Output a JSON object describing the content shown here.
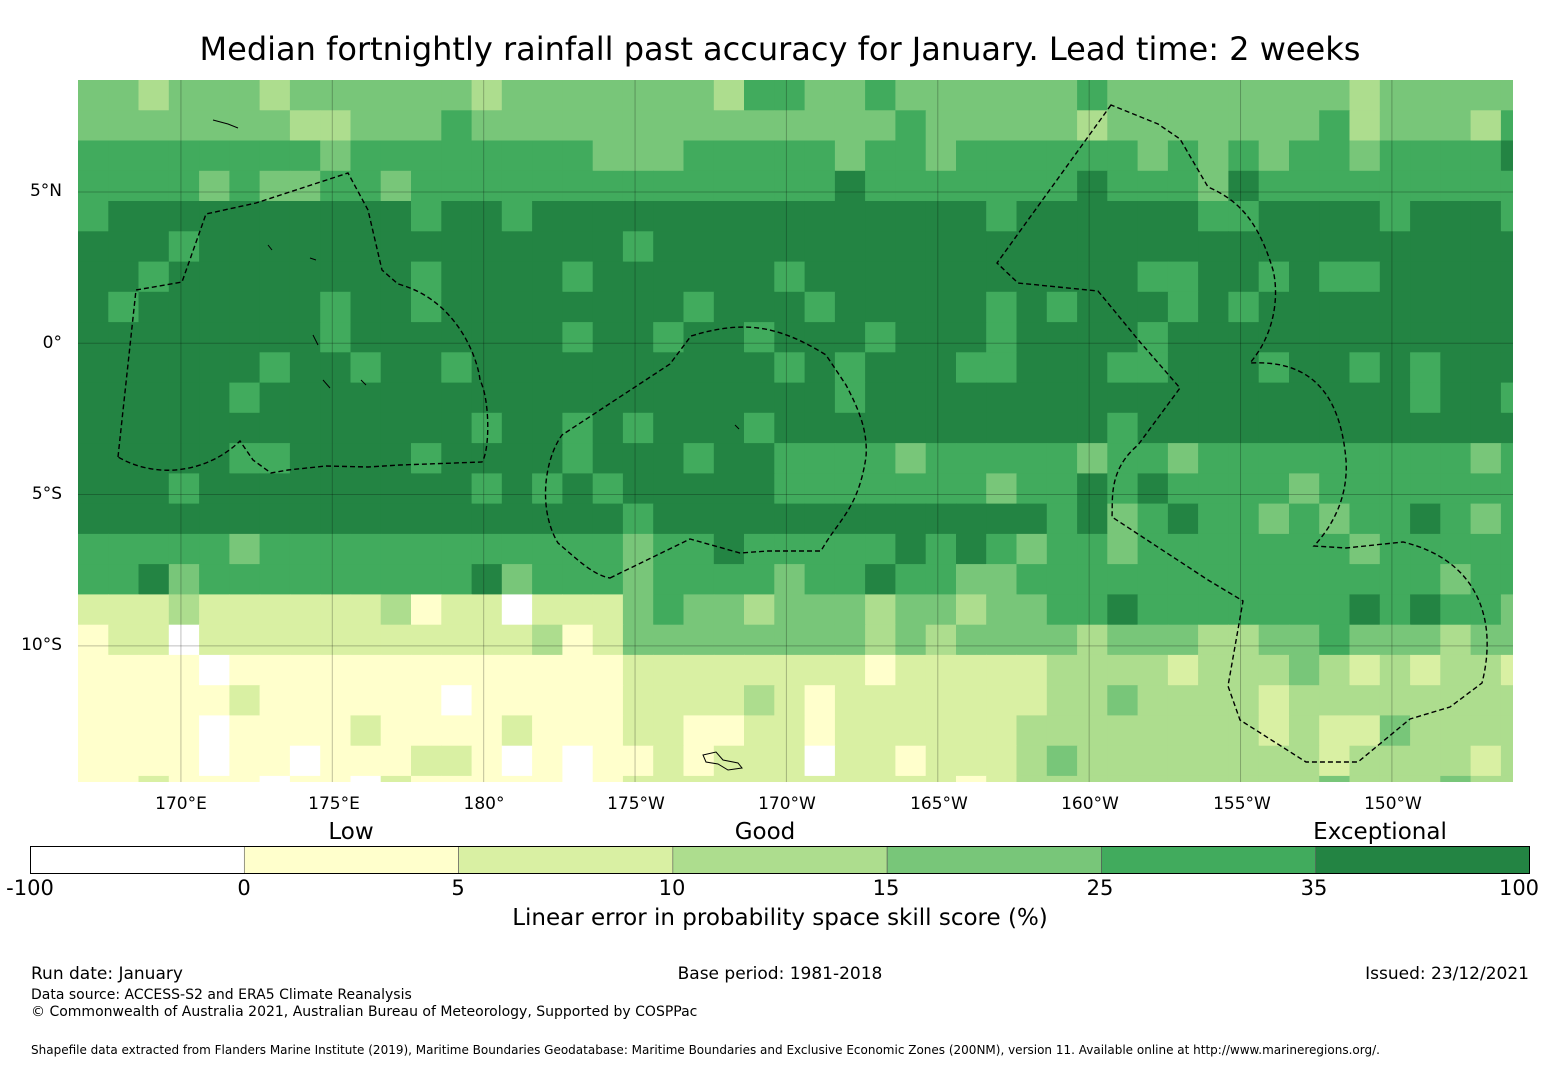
{
  "title": "Median fortnightly rainfall past accuracy for January. Lead time: 2 weeks",
  "map": {
    "y_axis_labels": [
      "5°N",
      "0°",
      "5°S",
      "10°S"
    ],
    "x_axis_labels": [
      "170°E",
      "175°E",
      "180°",
      "175°W",
      "170°W",
      "165°W",
      "160°W",
      "155°W",
      "150°W"
    ],
    "extent": {
      "lon_min": 166.6,
      "lon_max": 214.0,
      "lat_min": -14.5,
      "lat_max": 8.7
    }
  },
  "chart_data": {
    "type": "heatmap",
    "title": "Median fortnightly rainfall past accuracy for January. Lead time: 2 weeks",
    "variable": "Linear error in probability space skill score (%)",
    "bins": [
      -100,
      0,
      5,
      10,
      15,
      25,
      35,
      100
    ],
    "bin_colors": [
      "#ffffff",
      "#ffffcc",
      "#d9f0a3",
      "#addd8e",
      "#78c679",
      "#41ab5d",
      "#238443"
    ],
    "categories": [
      "Low",
      "Good",
      "Exceptional"
    ],
    "pattern_description": "Bands by latitude: exceptional (>35%) across the equatorial zone roughly 5°N to 7°S; good (15-35%) north of 5°N and south of 7°S; low (0-10%) in the southwest near 10-14°S, 167°E-175°W."
  },
  "legend": {
    "category_labels": [
      "Low",
      "Good",
      "Exceptional"
    ],
    "tick_labels": [
      "-100",
      "0",
      "5",
      "10",
      "15",
      "25",
      "35",
      "100"
    ],
    "label": "Linear error in probability space skill score (%)"
  },
  "footer": {
    "run_date": "Run date: January",
    "base_period": "Base period: 1981-2018",
    "issued": "Issued: 23/12/2021",
    "data_source": "Data source: ACCESS-S2 and ERA5 Climate Reanalysis",
    "copyright": "© Commonwealth of Australia 2021, Australian Bureau of Meteorology, Supported by COSPPac",
    "shapefile": "Shapefile data extracted from Flanders Marine Institute (2019), Maritime Boundaries Geodatabase: Maritime Boundaries and Exclusive Economic Zones (200NM), version 11. Available online at http://www.marineregions.org/."
  }
}
